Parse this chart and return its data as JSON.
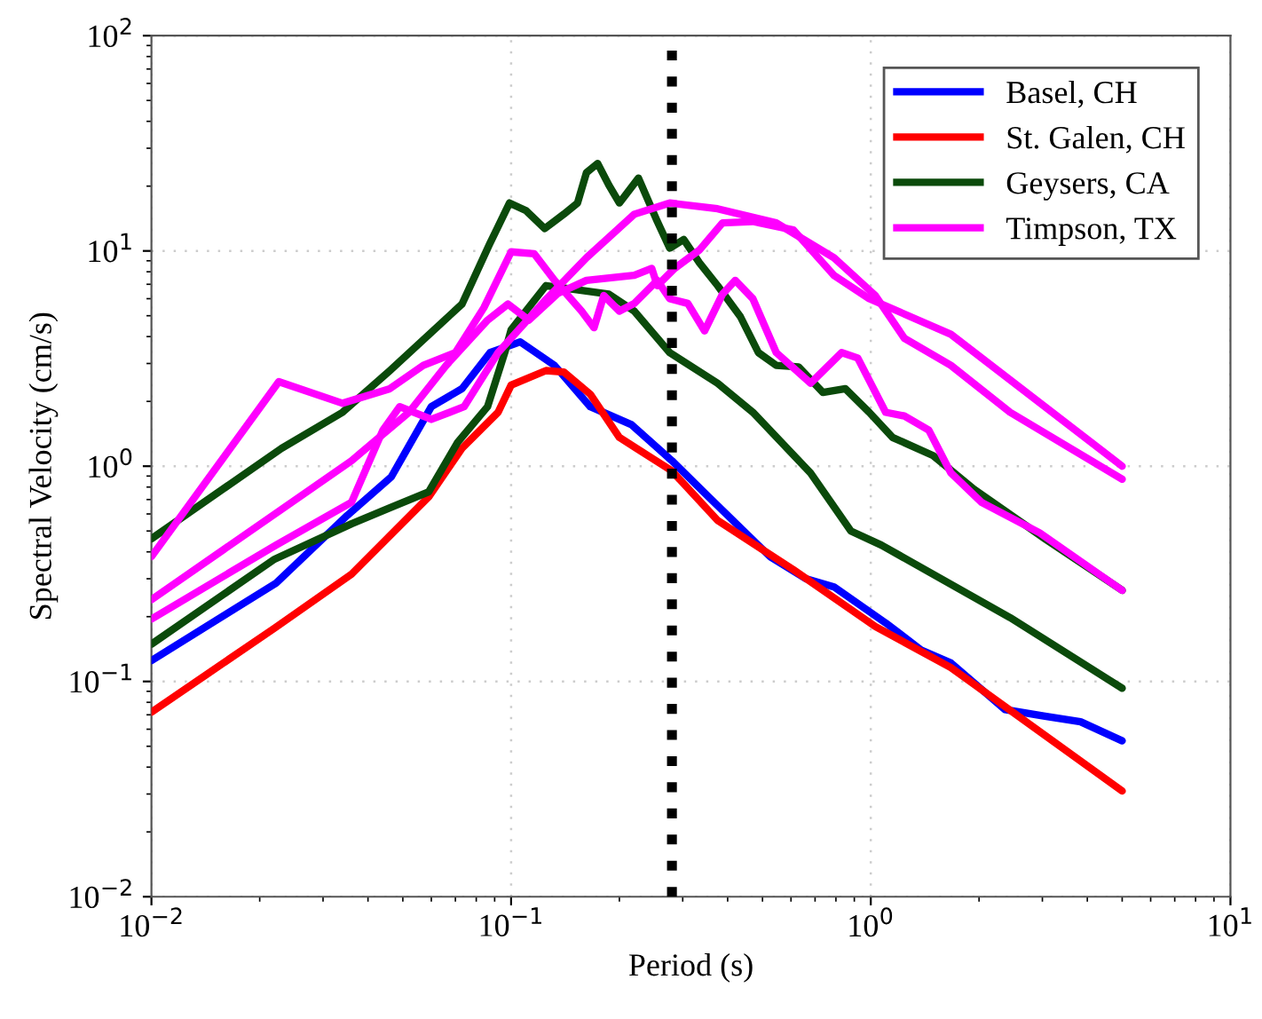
{
  "chart_data": {
    "type": "line",
    "xlabel": "Period (s)",
    "ylabel": "Spectral Velocity (cm/s)",
    "log": "xy",
    "grid": true,
    "legend": "top right",
    "line_style": "solid",
    "marker": "none",
    "xlim": [
      0.01,
      10
    ],
    "ylim": [
      0.01,
      100
    ],
    "xticks": [
      {
        "value": 0.01,
        "label": "10$^{−2}$"
      },
      {
        "value": 0.1,
        "label": "10$^{−1}$"
      },
      {
        "value": 1,
        "label": "10$^{0}$"
      },
      {
        "value": 10,
        "label": "10$^{1}$"
      }
    ],
    "yticks": [
      {
        "value": 0.01,
        "label": "10$^{−2}$"
      },
      {
        "value": 0.1,
        "label": "10$^{−1}$"
      },
      {
        "value": 1,
        "label": "10$^{0}$"
      },
      {
        "value": 10,
        "label": "10$^{1}$"
      },
      {
        "value": 100,
        "label": "10$^{2}$"
      }
    ],
    "ref_lines": [
      {
        "axis": "x",
        "value": 0.28,
        "color": "#000000",
        "line_style": "dotted"
      }
    ],
    "series": [
      {
        "name": "Basel, CH",
        "color": "#0000ff",
        "x": [
          0.01,
          0.0222,
          0.035,
          0.0464,
          0.06,
          0.073,
          0.0874,
          0.106,
          0.132,
          0.166,
          0.216,
          0.28,
          0.354,
          0.525,
          0.66,
          0.79,
          1.1,
          1.38,
          1.67,
          2.36,
          3.05,
          3.83,
          5.0
        ],
        "values": [
          0.125,
          0.286,
          0.59,
          0.89,
          1.89,
          2.29,
          3.37,
          3.78,
          2.94,
          1.89,
          1.56,
          1.06,
          0.72,
          0.38,
          0.3,
          0.275,
          0.187,
          0.14,
          0.122,
          0.074,
          0.069,
          0.065,
          0.053
        ]
      },
      {
        "name": "St. Galen, CH",
        "color": "#ff0000",
        "x": [
          0.01,
          0.022,
          0.036,
          0.059,
          0.073,
          0.092,
          0.1,
          0.125,
          0.14,
          0.166,
          0.2,
          0.28,
          0.375,
          0.61,
          1.03,
          1.67,
          5.0
        ],
        "values": [
          0.072,
          0.177,
          0.315,
          0.72,
          1.21,
          1.78,
          2.38,
          2.78,
          2.74,
          2.16,
          1.36,
          0.95,
          0.56,
          0.33,
          0.18,
          0.116,
          0.031
        ]
      },
      {
        "name": "Geysers, CA",
        "color": "#0b4a0b",
        "x": [
          0.01,
          0.023,
          0.034,
          0.046,
          0.073,
          0.087,
          0.099,
          0.11,
          0.124,
          0.14,
          0.153,
          0.162,
          0.174,
          0.187,
          0.2,
          0.226,
          0.255,
          0.276,
          0.302,
          0.334,
          0.375,
          0.434,
          0.487,
          0.546,
          0.63,
          0.736,
          0.85,
          0.99,
          1.15,
          1.49,
          1.94,
          3.05,
          5.0
        ],
        "values": [
          0.46,
          1.21,
          1.78,
          2.78,
          5.66,
          10.7,
          16.7,
          15.4,
          12.7,
          14.8,
          16.7,
          23.1,
          25.5,
          20.2,
          16.7,
          21.8,
          13.7,
          10.3,
          11.3,
          8.8,
          6.9,
          4.95,
          3.37,
          2.94,
          2.89,
          2.2,
          2.29,
          1.78,
          1.36,
          1.12,
          0.78,
          0.46,
          0.265
        ]
      },
      {
        "color": "#0b4a0b",
        "x": [
          0.01,
          0.022,
          0.036,
          0.046,
          0.059,
          0.071,
          0.086,
          0.096,
          0.1,
          0.125,
          0.152,
          0.187,
          0.22,
          0.276,
          0.375,
          0.47,
          0.68,
          0.88,
          1.07,
          2.44,
          5.0
        ],
        "values": [
          0.149,
          0.37,
          0.54,
          0.64,
          0.76,
          1.29,
          1.89,
          3.37,
          4.3,
          6.9,
          6.6,
          6.3,
          5.25,
          3.37,
          2.43,
          1.78,
          0.93,
          0.5,
          0.43,
          0.198,
          0.093
        ]
      },
      {
        "name": "Timpson, TX",
        "color": "#ff00ff",
        "x": [
          0.01,
          0.0226,
          0.034,
          0.046,
          0.057,
          0.07,
          0.084,
          0.1,
          0.116,
          0.132,
          0.157,
          0.17,
          0.181,
          0.2,
          0.22,
          0.255,
          0.276,
          0.31,
          0.345,
          0.387,
          0.42,
          0.47,
          0.546,
          0.68,
          0.83,
          0.92,
          1.1,
          1.24,
          1.45,
          1.67,
          2.03,
          2.95,
          5.0
        ],
        "values": [
          0.38,
          2.47,
          1.96,
          2.29,
          2.94,
          3.37,
          5.45,
          9.9,
          9.7,
          7.3,
          5.25,
          4.4,
          6.2,
          5.25,
          5.7,
          7.3,
          6.0,
          5.7,
          4.25,
          6.3,
          7.3,
          6.0,
          3.37,
          2.43,
          3.37,
          3.18,
          1.78,
          1.71,
          1.47,
          0.93,
          0.68,
          0.49,
          0.265
        ]
      },
      {
        "color": "#ff00ff",
        "x": [
          0.01,
          0.023,
          0.036,
          0.052,
          0.066,
          0.086,
          0.098,
          0.112,
          0.135,
          0.162,
          0.22,
          0.246,
          0.255,
          0.285,
          0.334,
          0.387,
          0.47,
          0.61,
          0.79,
          0.99,
          1.67,
          5.0
        ],
        "values": [
          0.24,
          0.63,
          1.06,
          1.78,
          2.94,
          4.77,
          5.66,
          4.77,
          6.35,
          7.3,
          7.7,
          8.3,
          6.9,
          8.3,
          10.1,
          13.5,
          13.7,
          12.5,
          7.7,
          6.0,
          4.1,
          1.0
        ]
      },
      {
        "color": "#ff00ff",
        "x": [
          0.01,
          0.0222,
          0.036,
          0.044,
          0.049,
          0.06,
          0.074,
          0.092,
          0.125,
          0.162,
          0.22,
          0.276,
          0.375,
          0.546,
          0.79,
          1.03,
          1.24,
          1.67,
          2.44,
          5.0
        ],
        "values": [
          0.195,
          0.43,
          0.68,
          1.47,
          1.89,
          1.65,
          1.89,
          3.37,
          5.95,
          9.3,
          14.8,
          16.7,
          15.7,
          13.5,
          9.3,
          6.2,
          3.93,
          2.94,
          1.78,
          0.87
        ]
      }
    ]
  }
}
